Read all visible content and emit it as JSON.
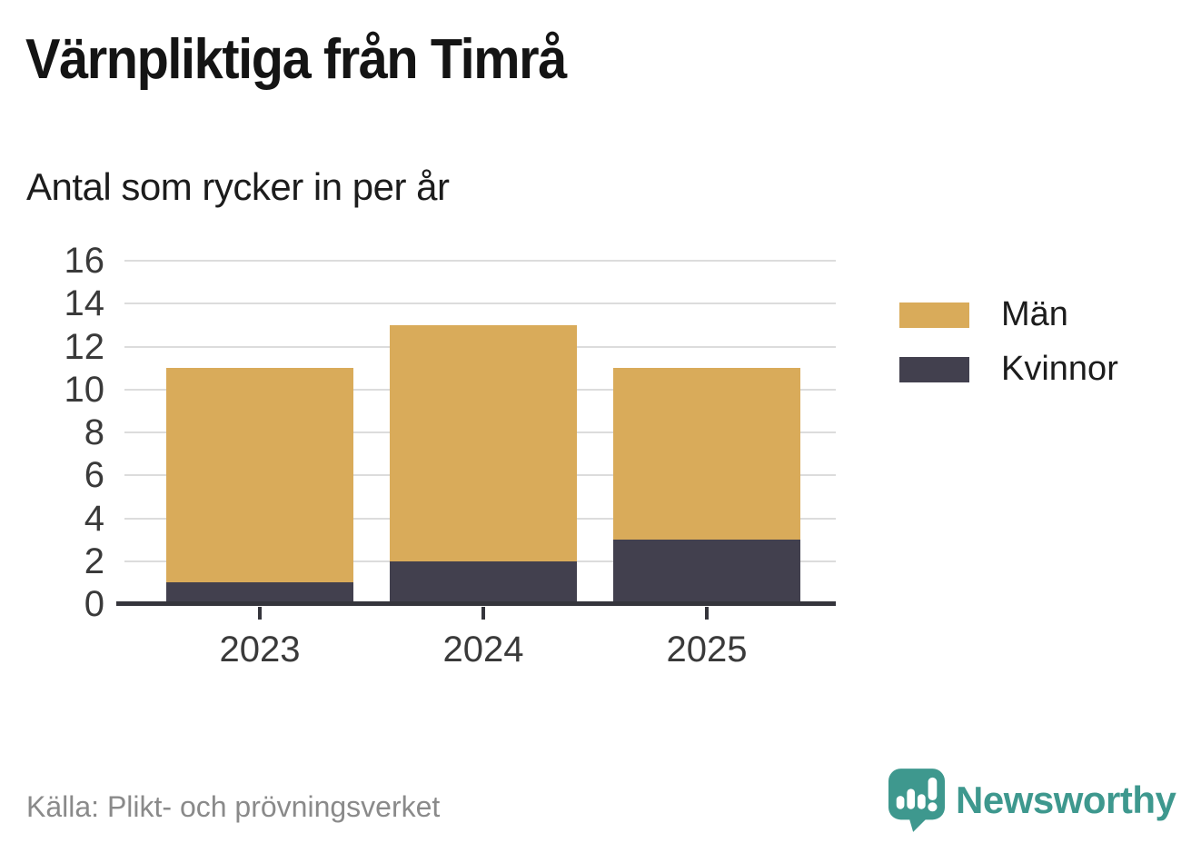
{
  "header": {
    "title": "Värnpliktiga från Timrå",
    "subtitle": "Antal som rycker in per år"
  },
  "chart_data": {
    "type": "bar",
    "stacked": true,
    "title": "Värnpliktiga från Timrå",
    "subtitle": "Antal som rycker in per år",
    "xlabel": "",
    "ylabel": "",
    "categories": [
      "2023",
      "2024",
      "2025"
    ],
    "series": [
      {
        "name": "Män",
        "color": "#d9ab5a",
        "values": [
          10,
          11,
          8
        ]
      },
      {
        "name": "Kvinnor",
        "color": "#42404e",
        "values": [
          1,
          2,
          3
        ]
      }
    ],
    "stack_bottom_to_top": [
      "Kvinnor",
      "Män"
    ],
    "totals": [
      11,
      13,
      11
    ],
    "ylim": [
      0,
      16
    ],
    "yticks": [
      0,
      2,
      4,
      6,
      8,
      10,
      12,
      14,
      16
    ],
    "grid": true,
    "gridline_color": "#dcdcdc",
    "axis_color": "#35353c",
    "legend_position": "right"
  },
  "legend": {
    "items": [
      {
        "label": "Män",
        "color": "#d9ab5a"
      },
      {
        "label": "Kvinnor",
        "color": "#42404e"
      }
    ]
  },
  "footer": {
    "source": "Källa: Plikt- och prövningsverket",
    "brand": "Newsworthy"
  },
  "colors": {
    "men": "#d9ab5a",
    "women": "#42404e",
    "brand_teal": "#3e988e",
    "text_dark": "#1c1c1c",
    "text_gray": "#8a8a8a"
  }
}
